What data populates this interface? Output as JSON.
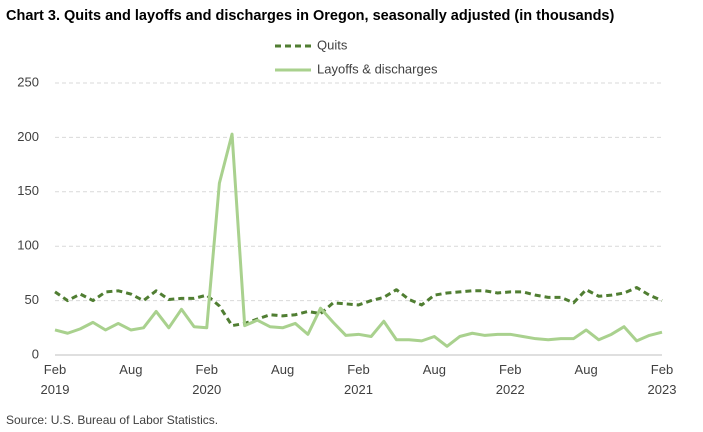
{
  "chart_data": {
    "type": "line",
    "title": "Chart 3. Quits and layoffs and discharges in Oregon, seasonally adjusted (in thousands)",
    "source": "Source: U.S. Bureau of Labor Statistics.",
    "categories": [
      "Feb 2019",
      null,
      null,
      null,
      null,
      null,
      "Aug",
      null,
      null,
      null,
      null,
      null,
      "Feb 2020",
      null,
      null,
      null,
      null,
      null,
      "Aug",
      null,
      null,
      null,
      null,
      null,
      "Feb 2021",
      null,
      null,
      null,
      null,
      null,
      "Aug",
      null,
      null,
      null,
      null,
      null,
      "Feb 2022",
      null,
      null,
      null,
      null,
      null,
      "Aug",
      null,
      null,
      null,
      null,
      null,
      "Feb 2023"
    ],
    "series": [
      {
        "name": "Quits",
        "color": "#507e32",
        "style": "dashed",
        "values": [
          58,
          50,
          56,
          50,
          58,
          59,
          56,
          50,
          59,
          51,
          52,
          52,
          55,
          45,
          27,
          29,
          33,
          37,
          36,
          37,
          40,
          38,
          48,
          47,
          46,
          50,
          53,
          60,
          51,
          46,
          55,
          57,
          58,
          59,
          59,
          57,
          58,
          58,
          55,
          53,
          53,
          48,
          60,
          54,
          55,
          57,
          62,
          55,
          50
        ]
      },
      {
        "name": "Layoffs & discharges",
        "color": "#a9d18e",
        "style": "solid",
        "values": [
          23,
          20,
          24,
          30,
          23,
          29,
          23,
          25,
          40,
          25,
          42,
          26,
          25,
          158,
          203,
          27,
          32,
          26,
          25,
          29,
          19,
          43,
          30,
          18,
          19,
          17,
          31,
          14,
          14,
          13,
          17,
          8,
          17,
          20,
          18,
          19,
          19,
          17,
          15,
          14,
          15,
          15,
          23,
          14,
          19,
          26,
          13,
          18,
          21
        ]
      }
    ],
    "ylim": [
      0,
      250
    ],
    "yticks": [
      0,
      50,
      100,
      150,
      200,
      250
    ],
    "grid": true
  }
}
